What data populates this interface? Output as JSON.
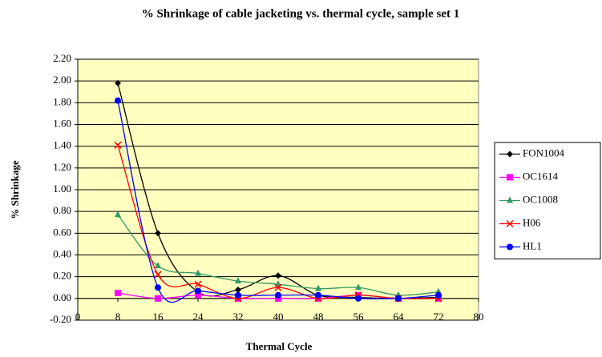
{
  "chart_data": {
    "type": "line",
    "title": "% Shrinkage of cable jacketing vs. thermal cycle, sample set 1",
    "x_label": "Thermal Cycle",
    "y_label": "% Shrinkage",
    "x": [
      8,
      16,
      24,
      32,
      40,
      48,
      56,
      64,
      72
    ],
    "series": [
      {
        "name": "FON1004",
        "color": "#000000",
        "marker": "diamond",
        "values": [
          1.98,
          0.6,
          0.06,
          0.08,
          0.21,
          0.03,
          0.01,
          0.0,
          0.01
        ]
      },
      {
        "name": "OC1614",
        "color": "#ff00ff",
        "marker": "square",
        "values": [
          0.05,
          0.0,
          0.03,
          0.0,
          0.0,
          0.0,
          0.03,
          0.0,
          0.0
        ]
      },
      {
        "name": "OC1008",
        "color": "#339966",
        "marker": "triangle",
        "values": [
          0.77,
          0.3,
          0.23,
          0.16,
          0.13,
          0.09,
          0.1,
          0.03,
          0.06
        ]
      },
      {
        "name": "H06",
        "color": "#ff0000",
        "marker": "x",
        "values": [
          1.41,
          0.22,
          0.13,
          0.0,
          0.1,
          0.0,
          0.03,
          0.0,
          0.0
        ]
      },
      {
        "name": "HL1",
        "color": "#0000ff",
        "marker": "circle",
        "values": [
          1.82,
          0.1,
          0.07,
          0.03,
          0.03,
          0.03,
          0.0,
          0.0,
          0.03
        ]
      }
    ],
    "xlim": [
      0,
      80
    ],
    "xticks": [
      0,
      8,
      16,
      24,
      32,
      40,
      48,
      56,
      64,
      72,
      80
    ],
    "ylim": [
      -0.2,
      2.2
    ],
    "yticks": [
      {
        "value": -0.2,
        "label": "-0.20"
      },
      {
        "value": 0,
        "label": "0.00"
      },
      {
        "value": 0.2,
        "label": "0.20"
      },
      {
        "value": 0.4,
        "label": "0.40"
      },
      {
        "value": 0.6,
        "label": "0.60"
      },
      {
        "value": 0.8,
        "label": "0.80"
      },
      {
        "value": 1.0,
        "label": "1.00"
      },
      {
        "value": 1.2,
        "label": "1.20"
      },
      {
        "value": 1.4,
        "label": "1.40"
      },
      {
        "value": 1.6,
        "label": "1.60"
      },
      {
        "value": 1.8,
        "label": "1.80"
      },
      {
        "value": 2.0,
        "label": "2.00"
      },
      {
        "value": 2.2,
        "label": "2.20"
      }
    ],
    "grid": true,
    "smooth": true,
    "legend": "right",
    "plot_background": "#ffffc0"
  }
}
